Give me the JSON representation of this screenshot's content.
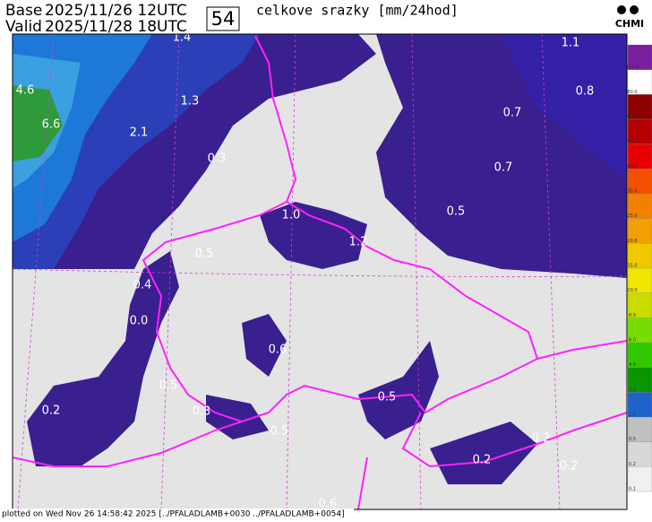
{
  "header": {
    "base_label": "Base",
    "base_date": "2025/11/26 12UTC",
    "valid_label": "Valid",
    "valid_date": "2025/11/28 18UTC",
    "step": "54",
    "title": "celkove srazky [mm/24hod]",
    "logo": "CHMI"
  },
  "map": {
    "labels": [
      "1.4",
      "1.1",
      "4.6",
      "1.3",
      "0.8",
      "6.6",
      "2.1",
      "0.7",
      "0.7",
      "0.3",
      "0.5",
      "1.0",
      "1.2",
      "0.5",
      "0.4",
      "0.0",
      "0.6",
      "0.5",
      "0.5",
      "0.2",
      "0.3",
      "0.5",
      "0.2",
      "0.2",
      "0.2",
      "0.6"
    ]
  },
  "legend": {
    "colors": [
      "#f0f0f0",
      "#d8d8d8",
      "#c0c0c0",
      "#1e64c8",
      "#0a9600",
      "#32c800",
      "#78dc00",
      "#c8dc00",
      "#f0e600",
      "#f0c800",
      "#f0a000",
      "#f08200",
      "#f05000",
      "#e60000",
      "#b40000",
      "#8c0000",
      "#ffffff",
      "#7a1fa0"
    ],
    "labels": [
      "0.1",
      "0.2",
      "0.5",
      "1.0",
      "2.0",
      "4.0",
      "6.0",
      "8.0",
      "10.0",
      "15.0",
      "20.0",
      "25.0",
      "30.0",
      "40.0",
      "50.0",
      "60.0",
      "80.0",
      "100.0"
    ]
  },
  "footer": "plotted on Wed Nov 26 14:58:42 2025 [../PFALADLAMB+0030 ../PFALADLAMB+0054]"
}
